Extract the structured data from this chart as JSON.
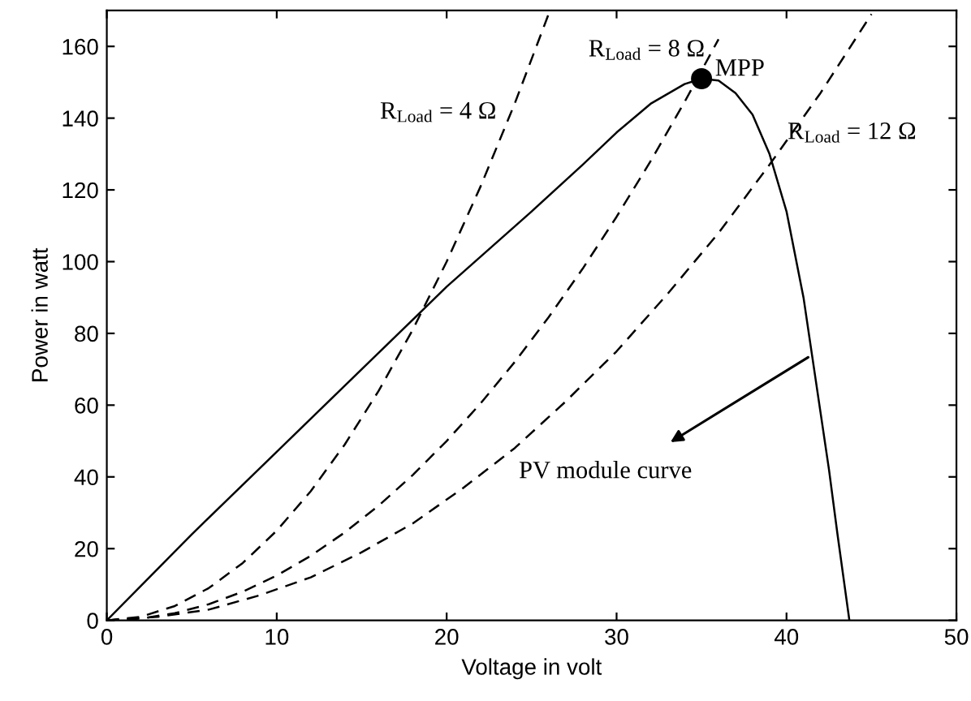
{
  "chart_data": {
    "type": "line",
    "xlabel": "Voltage in volt",
    "ylabel": "Power in watt",
    "xlim": [
      0,
      50
    ],
    "ylim": [
      0,
      170
    ],
    "xticks": [
      0,
      10,
      20,
      30,
      40,
      50
    ],
    "yticks": [
      0,
      20,
      40,
      60,
      80,
      100,
      120,
      140,
      160
    ],
    "grid": false,
    "series": [
      {
        "color": "#000000",
        "line_style": "solid",
        "marker": "none",
        "x": [
          0,
          5,
          10,
          15,
          20,
          25,
          28,
          30,
          32,
          34,
          35,
          36,
          37,
          38,
          39,
          40,
          41,
          41.5,
          42,
          42.5,
          43,
          43.7
        ],
        "values": [
          0,
          24,
          47,
          70,
          93,
          114,
          127,
          136,
          144,
          149.5,
          151,
          150.5,
          147,
          141,
          130,
          114,
          90,
          74,
          58,
          42,
          24,
          0
        ]
      },
      {
        "color": "#000000",
        "line_style": "dashed",
        "marker": "none",
        "x": [
          0,
          2,
          4,
          6,
          8,
          10,
          12,
          14,
          16,
          18,
          20,
          22,
          24,
          26
        ],
        "values": [
          0,
          1,
          4,
          9,
          16,
          25,
          36,
          49,
          64,
          81,
          100,
          121,
          144,
          169
        ]
      },
      {
        "color": "#000000",
        "line_style": "dashed",
        "marker": "none",
        "x": [
          0,
          2,
          4,
          6,
          8,
          10,
          12,
          14,
          16,
          18,
          20,
          22,
          24,
          26,
          28,
          30,
          32,
          34,
          36
        ],
        "values": [
          0,
          0.5,
          2,
          4.5,
          8,
          12.5,
          18,
          24.5,
          32,
          40.5,
          50,
          60.5,
          72,
          84.5,
          98,
          112.5,
          128,
          144.5,
          162
        ]
      },
      {
        "color": "#000000",
        "line_style": "dashed",
        "marker": "none",
        "x": [
          0,
          3,
          6,
          9,
          12,
          15,
          18,
          21,
          24,
          27,
          30,
          33,
          36,
          39,
          42,
          45
        ],
        "values": [
          0,
          1,
          3,
          7,
          12,
          19,
          27,
          37,
          48,
          61,
          75,
          91,
          108,
          127,
          147,
          169
        ]
      },
      {
        "type": "scatter",
        "color": "#000000",
        "marker": "circle",
        "x": [
          35
        ],
        "values": [
          151
        ]
      }
    ],
    "annotations": [
      {
        "text": "R$_{Load}$ = 4 Ω",
        "x": 24,
        "y": 144
      },
      {
        "text": "R$_{Load}$ = 8 Ω",
        "x": 36,
        "y": 162
      },
      {
        "text": "R$_{Load}$ = 12 Ω",
        "x": 39,
        "y": 127
      },
      {
        "text": "MPP",
        "x": 35,
        "y": 151
      },
      {
        "text": "PV module curve",
        "x": 41.5,
        "y": 74
      }
    ]
  }
}
